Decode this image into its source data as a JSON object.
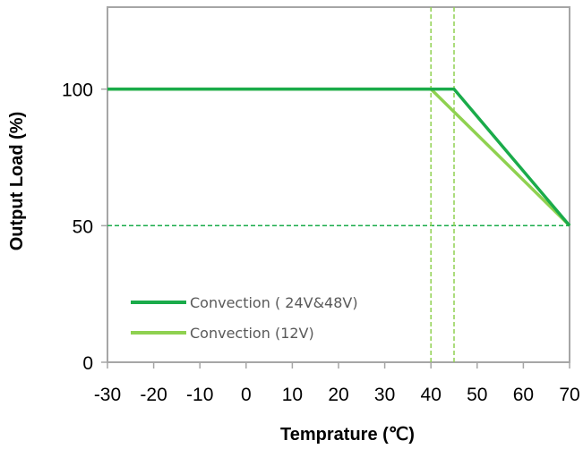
{
  "chart_data": {
    "type": "line",
    "xlabel": "Temprature (℃)",
    "ylabel": "Output  Load (%)",
    "xlim": [
      -30,
      70
    ],
    "ylim": [
      0,
      130
    ],
    "x_ticks": [
      -30,
      -20,
      -10,
      0,
      10,
      20,
      30,
      40,
      50,
      60,
      70
    ],
    "y_ticks": [
      0,
      50,
      100
    ],
    "grid": false,
    "legend_position": "bottom-left",
    "series": [
      {
        "name": "Convection ( 24V&48V)",
        "color": "#1aab4a",
        "points": [
          [
            -30,
            100
          ],
          [
            45,
            100
          ],
          [
            70,
            50
          ]
        ]
      },
      {
        "name": "Convection (12V)",
        "color": "#8fd150",
        "points": [
          [
            -30,
            100
          ],
          [
            40,
            100
          ],
          [
            70,
            50
          ]
        ]
      }
    ],
    "reference_lines": [
      {
        "axis": "y",
        "value": 50,
        "style": "dashed",
        "color": "#1aab4a"
      },
      {
        "axis": "x",
        "value": 40,
        "style": "dashed",
        "color": "#8fd150"
      },
      {
        "axis": "x",
        "value": 45,
        "style": "dashed",
        "color": "#8fd150"
      }
    ],
    "frame_color": "#a6a6a6"
  }
}
